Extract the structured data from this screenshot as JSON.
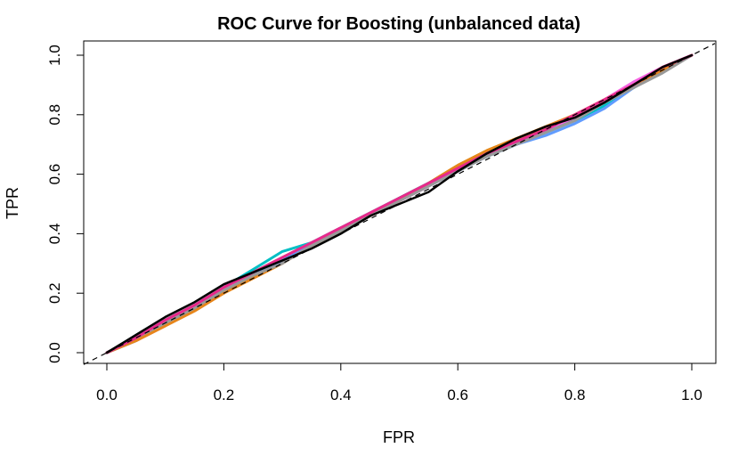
{
  "chart_data": {
    "type": "line",
    "title": "ROC Curve for Boosting (unbalanced data)",
    "xlabel": "FPR",
    "ylabel": "TPR",
    "xlim": [
      0,
      1
    ],
    "ylim": [
      0,
      1
    ],
    "x_ticks": [
      "0.0",
      "0.2",
      "0.4",
      "0.6",
      "0.8",
      "1.0"
    ],
    "y_ticks": [
      "0.0",
      "0.2",
      "0.4",
      "0.6",
      "0.8",
      "1.0"
    ],
    "grid": false,
    "legend": "none",
    "reference_line": {
      "style": "dashed",
      "from": [
        0,
        0
      ],
      "to": [
        1,
        1
      ],
      "color": "#000000"
    },
    "series": [
      {
        "color": "#F8766D",
        "lw": 3,
        "x": [
          0,
          0.05,
          0.1,
          0.15,
          0.2,
          0.25,
          0.3,
          0.35,
          0.4,
          0.45,
          0.5,
          0.55,
          0.6,
          0.65,
          0.7,
          0.75,
          0.8,
          0.85,
          0.9,
          0.95,
          1.0
        ],
        "y": [
          0,
          0.04,
          0.09,
          0.15,
          0.2,
          0.26,
          0.31,
          0.36,
          0.41,
          0.46,
          0.51,
          0.56,
          0.62,
          0.67,
          0.71,
          0.75,
          0.8,
          0.85,
          0.9,
          0.95,
          1.0
        ]
      },
      {
        "color": "#B79F00",
        "lw": 3,
        "x": [
          0,
          0.05,
          0.1,
          0.15,
          0.2,
          0.25,
          0.3,
          0.35,
          0.4,
          0.45,
          0.5,
          0.55,
          0.6,
          0.65,
          0.7,
          0.75,
          0.8,
          0.85,
          0.9,
          0.95,
          1.0
        ],
        "y": [
          0,
          0.05,
          0.1,
          0.16,
          0.21,
          0.27,
          0.32,
          0.37,
          0.41,
          0.46,
          0.51,
          0.57,
          0.63,
          0.68,
          0.72,
          0.75,
          0.79,
          0.84,
          0.89,
          0.95,
          1.0
        ]
      },
      {
        "color": "#00BA38",
        "lw": 3,
        "x": [
          0,
          0.05,
          0.1,
          0.15,
          0.2,
          0.25,
          0.3,
          0.35,
          0.4,
          0.45,
          0.5,
          0.55,
          0.6,
          0.65,
          0.7,
          0.75,
          0.8,
          0.85,
          0.9,
          0.95,
          1.0
        ],
        "y": [
          0,
          0.05,
          0.1,
          0.15,
          0.21,
          0.27,
          0.32,
          0.36,
          0.41,
          0.46,
          0.52,
          0.57,
          0.62,
          0.67,
          0.71,
          0.74,
          0.79,
          0.84,
          0.9,
          0.96,
          1.0
        ]
      },
      {
        "color": "#00BFC4",
        "lw": 3,
        "x": [
          0,
          0.05,
          0.1,
          0.15,
          0.2,
          0.25,
          0.3,
          0.35,
          0.4,
          0.45,
          0.5,
          0.55,
          0.6,
          0.65,
          0.7,
          0.75,
          0.8,
          0.85,
          0.9,
          0.95,
          1.0
        ],
        "y": [
          0,
          0.05,
          0.11,
          0.16,
          0.22,
          0.28,
          0.34,
          0.37,
          0.42,
          0.47,
          0.52,
          0.57,
          0.62,
          0.66,
          0.7,
          0.74,
          0.78,
          0.83,
          0.89,
          0.95,
          1.0
        ]
      },
      {
        "color": "#619CFF",
        "lw": 3,
        "x": [
          0,
          0.05,
          0.1,
          0.15,
          0.2,
          0.25,
          0.3,
          0.35,
          0.4,
          0.45,
          0.5,
          0.55,
          0.6,
          0.65,
          0.7,
          0.75,
          0.8,
          0.85,
          0.9,
          0.95,
          1.0
        ],
        "y": [
          0,
          0.04,
          0.1,
          0.15,
          0.2,
          0.26,
          0.31,
          0.36,
          0.41,
          0.46,
          0.51,
          0.56,
          0.61,
          0.66,
          0.7,
          0.73,
          0.77,
          0.82,
          0.89,
          0.95,
          1.0
        ]
      },
      {
        "color": "#F564E3",
        "lw": 3,
        "x": [
          0,
          0.05,
          0.1,
          0.15,
          0.2,
          0.25,
          0.3,
          0.35,
          0.4,
          0.45,
          0.5,
          0.55,
          0.6,
          0.65,
          0.7,
          0.75,
          0.8,
          0.85,
          0.9,
          0.95,
          1.0
        ],
        "y": [
          0,
          0.05,
          0.1,
          0.16,
          0.21,
          0.27,
          0.32,
          0.37,
          0.42,
          0.46,
          0.51,
          0.56,
          0.62,
          0.67,
          0.71,
          0.75,
          0.79,
          0.85,
          0.91,
          0.96,
          1.0
        ]
      },
      {
        "color": "#E7861B",
        "lw": 3,
        "x": [
          0,
          0.05,
          0.1,
          0.15,
          0.2,
          0.25,
          0.3,
          0.35,
          0.4,
          0.45,
          0.5,
          0.55,
          0.6,
          0.65,
          0.7,
          0.75,
          0.8,
          0.85,
          0.9,
          0.95,
          1.0
        ],
        "y": [
          0,
          0.04,
          0.09,
          0.14,
          0.2,
          0.25,
          0.3,
          0.36,
          0.41,
          0.46,
          0.51,
          0.57,
          0.63,
          0.68,
          0.72,
          0.76,
          0.8,
          0.85,
          0.9,
          0.95,
          1.0
        ]
      },
      {
        "color": "#999999",
        "lw": 3,
        "x": [
          0,
          0.05,
          0.1,
          0.15,
          0.2,
          0.25,
          0.3,
          0.35,
          0.4,
          0.45,
          0.5,
          0.55,
          0.6,
          0.65,
          0.7,
          0.75,
          0.8,
          0.85,
          0.9,
          0.95,
          1.0
        ],
        "y": [
          0,
          0.05,
          0.1,
          0.15,
          0.21,
          0.26,
          0.3,
          0.36,
          0.41,
          0.46,
          0.51,
          0.56,
          0.61,
          0.66,
          0.7,
          0.74,
          0.78,
          0.84,
          0.89,
          0.94,
          1.0
        ]
      },
      {
        "color": "#E7298A",
        "lw": 3,
        "x": [
          0,
          0.05,
          0.1,
          0.15,
          0.2,
          0.25,
          0.3,
          0.35,
          0.4,
          0.45,
          0.5,
          0.55,
          0.6,
          0.65,
          0.7,
          0.75,
          0.8,
          0.85,
          0.9,
          0.95,
          1.0
        ],
        "y": [
          0,
          0.05,
          0.11,
          0.16,
          0.22,
          0.27,
          0.32,
          0.37,
          0.42,
          0.47,
          0.52,
          0.57,
          0.62,
          0.67,
          0.71,
          0.75,
          0.8,
          0.85,
          0.9,
          0.96,
          1.0
        ]
      },
      {
        "color": "#000000",
        "lw": 2.5,
        "x": [
          0,
          0.05,
          0.1,
          0.15,
          0.2,
          0.25,
          0.3,
          0.35,
          0.4,
          0.45,
          0.5,
          0.55,
          0.6,
          0.65,
          0.7,
          0.75,
          0.8,
          0.85,
          0.9,
          0.95,
          1.0
        ],
        "y": [
          0,
          0.06,
          0.12,
          0.17,
          0.23,
          0.27,
          0.31,
          0.35,
          0.4,
          0.46,
          0.5,
          0.54,
          0.61,
          0.67,
          0.72,
          0.76,
          0.79,
          0.84,
          0.9,
          0.96,
          1.0
        ]
      }
    ]
  }
}
